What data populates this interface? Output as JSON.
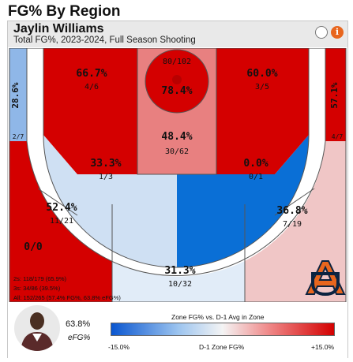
{
  "page_title": "FG% By Region",
  "header": {
    "player_name": "Jaylin Williams",
    "subtitle": "Total FG%, 2023-2024, Full Season Shooting",
    "info_glyph": "i"
  },
  "chart_data": {
    "type": "heatmap",
    "zones": [
      {
        "id": "left-corner-three",
        "pct": "28.6%",
        "made_att": "2/7",
        "zone_fg": 28.6,
        "color": "#8fb7e8"
      },
      {
        "id": "left-long-two",
        "pct": "66.7%",
        "made_att": "4/6",
        "zone_fg": 66.7,
        "color": "#d40000"
      },
      {
        "id": "rim",
        "pct": "78.4%",
        "made_att": "80/102",
        "zone_fg": 78.4,
        "color": "#d40000"
      },
      {
        "id": "paint",
        "pct": "48.4%",
        "made_att": "30/62",
        "zone_fg": 48.4,
        "color": "#e88080"
      },
      {
        "id": "right-long-two",
        "pct": "60.0%",
        "made_att": "3/5",
        "zone_fg": 60.0,
        "color": "#d40000"
      },
      {
        "id": "right-corner-three",
        "pct": "57.1%",
        "made_att": "4/7",
        "zone_fg": 57.1,
        "color": "#d40000"
      },
      {
        "id": "left-mid-two",
        "pct": "33.3%",
        "made_att": "1/3",
        "zone_fg": 33.3,
        "color": "#cfe0f3"
      },
      {
        "id": "right-mid-two",
        "pct": "0.0%",
        "made_att": "0/1",
        "zone_fg": 0.0,
        "color": "#0a6fd6"
      },
      {
        "id": "left-wing-three",
        "pct": "52.4%",
        "made_att": "11/21",
        "zone_fg": 52.4,
        "color": "#d40000"
      },
      {
        "id": "top-key-three",
        "pct": "31.3%",
        "made_att": "10/32",
        "zone_fg": 31.3,
        "color": "#e1ecf8"
      },
      {
        "id": "right-wing-three",
        "pct": "36.8%",
        "made_att": "7/19",
        "zone_fg": 36.8,
        "color": "#f0c6c6"
      },
      {
        "id": "backcourt",
        "pct": "",
        "made_att": "0/0",
        "zone_fg": null,
        "color": "#ffffff"
      }
    ],
    "totals": [
      "2s: 118/179 (65.9%)",
      "3s: 34/86 (39.5%)",
      "All: 152/265 (57.4% FG%, 63.8% eFG%)"
    ],
    "efg_value": "63.8%",
    "efg_label": "eFG%",
    "legend": {
      "title": "Zone FG% vs. D-1 Avg in Zone",
      "min_label": "-15.0%",
      "mid_label": "D-1 Zone FG%",
      "max_label": "+15.0%",
      "min_color": "#0a56d0",
      "max_color": "#d40000"
    },
    "team_logo": "AU"
  }
}
